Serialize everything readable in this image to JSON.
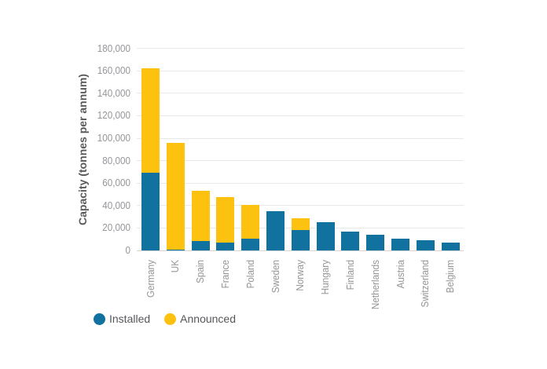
{
  "chart_data": {
    "type": "bar",
    "stacked": true,
    "title": "",
    "xlabel": "",
    "ylabel": "Capacity (tonnes per annum)",
    "ylim": [
      0,
      180000
    ],
    "ytick_step": 20000,
    "ytick_labels": [
      "0",
      "20,000",
      "40,000",
      "60,000",
      "80,000",
      "100,000",
      "120,000",
      "140,000",
      "160,000",
      "180,000"
    ],
    "grid": true,
    "legend_position": "bottom-left",
    "categories": [
      "Germany",
      "UK",
      "Spain",
      "France",
      "Poland",
      "Sweden",
      "Norway",
      "Hungary",
      "Finland",
      "Netherlands",
      "Austria",
      "Switzerland",
      "Belgium"
    ],
    "series": [
      {
        "name": "Installed",
        "color": "#11719f",
        "values": [
          69000,
          1000,
          8500,
          7000,
          10500,
          35000,
          18500,
          25000,
          17000,
          14000,
          10500,
          9000,
          7000
        ]
      },
      {
        "name": "Announced",
        "color": "#fdc110",
        "values": [
          93500,
          94500,
          44500,
          40500,
          30000,
          0,
          10000,
          0,
          0,
          0,
          0,
          0,
          0
        ]
      }
    ]
  },
  "legend": {
    "items": [
      {
        "label": "Installed",
        "color": "#11719f"
      },
      {
        "label": "Announced",
        "color": "#fdc110"
      }
    ]
  },
  "colors": {
    "installed": "#11719f",
    "announced": "#fdc110",
    "gridline": "#e8e8e9",
    "axis_line": "#d2d4d5",
    "tick_text": "#939598",
    "axis_title_text": "#58595b",
    "legend_text": "#55565a"
  }
}
